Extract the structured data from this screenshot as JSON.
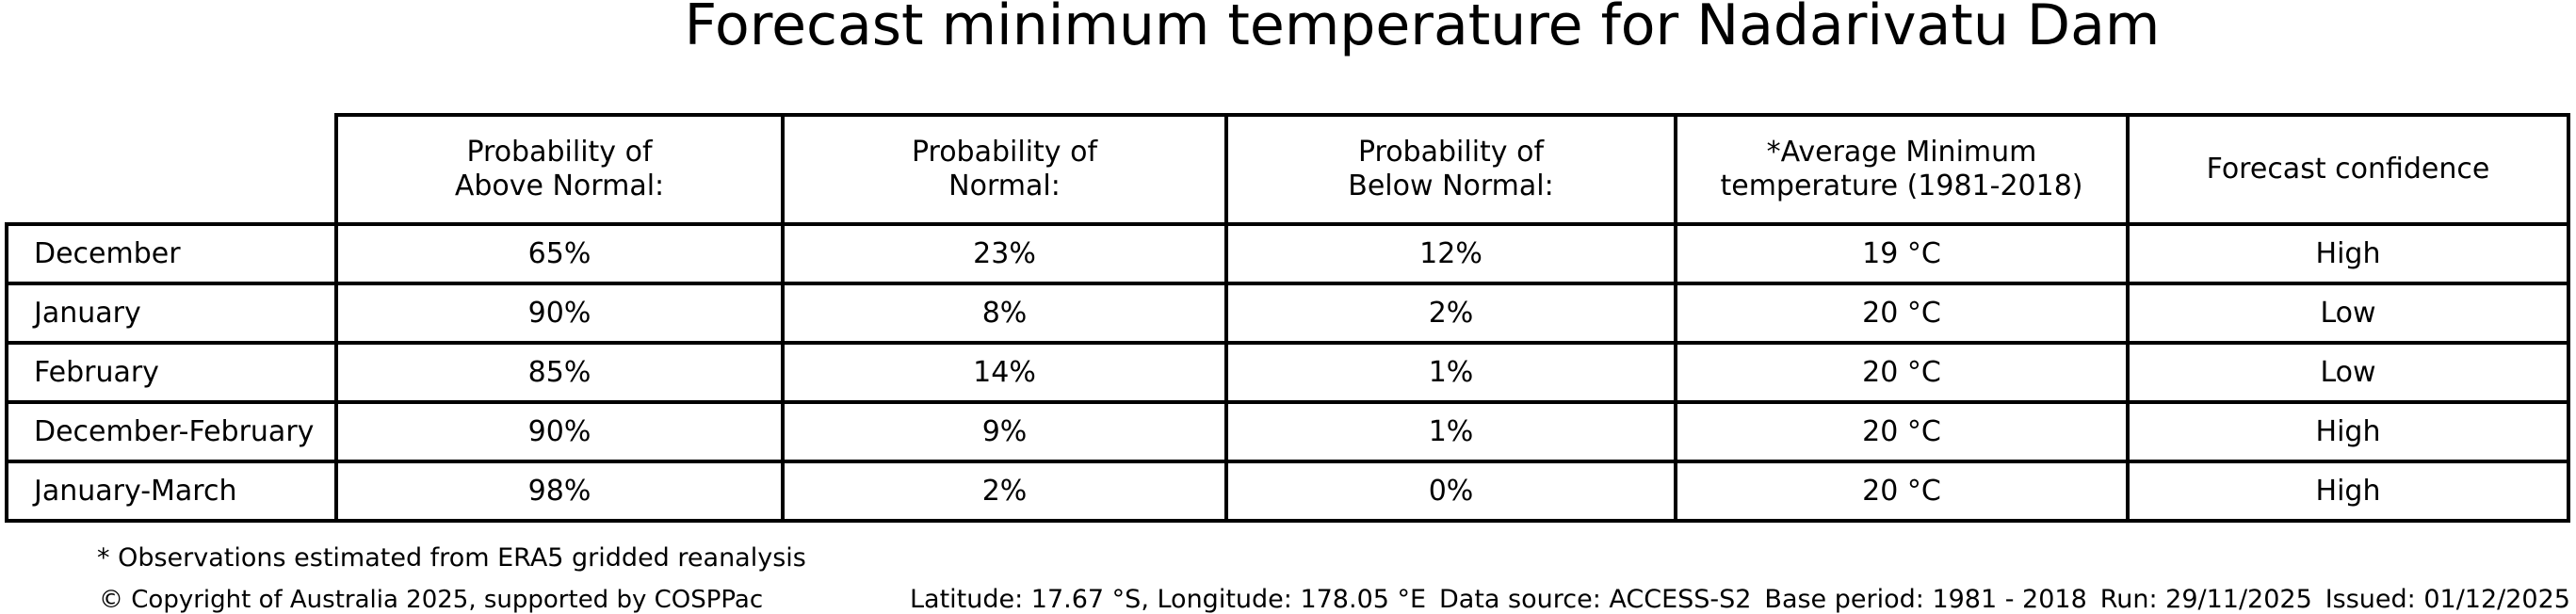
{
  "title": "Forecast minimum temperature for Nadarivatu Dam",
  "table": {
    "corner_label": "",
    "columns": [
      "Probability of\nAbove Normal:",
      "Probability of\nNormal:",
      "Probability of\nBelow Normal:",
      "*Average Minimum\ntemperature (1981-2018)",
      "Forecast confidence"
    ],
    "rows": [
      {
        "period": "December",
        "above": "65%",
        "normal": "23%",
        "below": "12%",
        "avg_min": "19 °C",
        "confidence": "High"
      },
      {
        "period": "January",
        "above": "90%",
        "normal": "8%",
        "below": "2%",
        "avg_min": "20 °C",
        "confidence": "Low"
      },
      {
        "period": "February",
        "above": "85%",
        "normal": "14%",
        "below": "1%",
        "avg_min": "20 °C",
        "confidence": "Low"
      },
      {
        "period": "December-February",
        "above": "90%",
        "normal": "9%",
        "below": "1%",
        "avg_min": "20 °C",
        "confidence": "High"
      },
      {
        "period": "January-March",
        "above": "98%",
        "normal": "2%",
        "below": "0%",
        "avg_min": "20 °C",
        "confidence": "High"
      }
    ]
  },
  "footnote": "* Observations estimated from ERA5 gridded reanalysis",
  "copyright": "© Copyright of Australia 2025, supported by COSPPac",
  "meta": {
    "location": "Latitude: 17.67 °S, Longitude: 178.05 °E",
    "data_source": "Data source: ACCESS-S2",
    "base_period": "Base period: 1981 - 2018",
    "run": "Run: 29/11/2025",
    "issued": "Issued: 01/12/2025"
  },
  "chart_data": {
    "type": "table",
    "title": "Forecast minimum temperature for Nadarivatu Dam",
    "columns": [
      "",
      "Probability of Above Normal:",
      "Probability of Normal:",
      "Probability of Below Normal:",
      "*Average Minimum temperature (1981-2018)",
      "Forecast confidence"
    ],
    "rows": [
      [
        "December",
        "65%",
        "23%",
        "12%",
        "19 °C",
        "High"
      ],
      [
        "January",
        "90%",
        "8%",
        "2%",
        "20 °C",
        "Low"
      ],
      [
        "February",
        "85%",
        "14%",
        "1%",
        "20 °C",
        "Low"
      ],
      [
        "December-February",
        "90%",
        "9%",
        "1%",
        "20 °C",
        "High"
      ],
      [
        "January-March",
        "98%",
        "2%",
        "0%",
        "20 °C",
        "High"
      ]
    ],
    "footnote": "* Observations estimated from ERA5 gridded reanalysis",
    "legend_position": "none",
    "grid": "table-borders"
  },
  "colors": {
    "background": "#ffffff",
    "text": "#000000",
    "table_border": "#000000"
  }
}
